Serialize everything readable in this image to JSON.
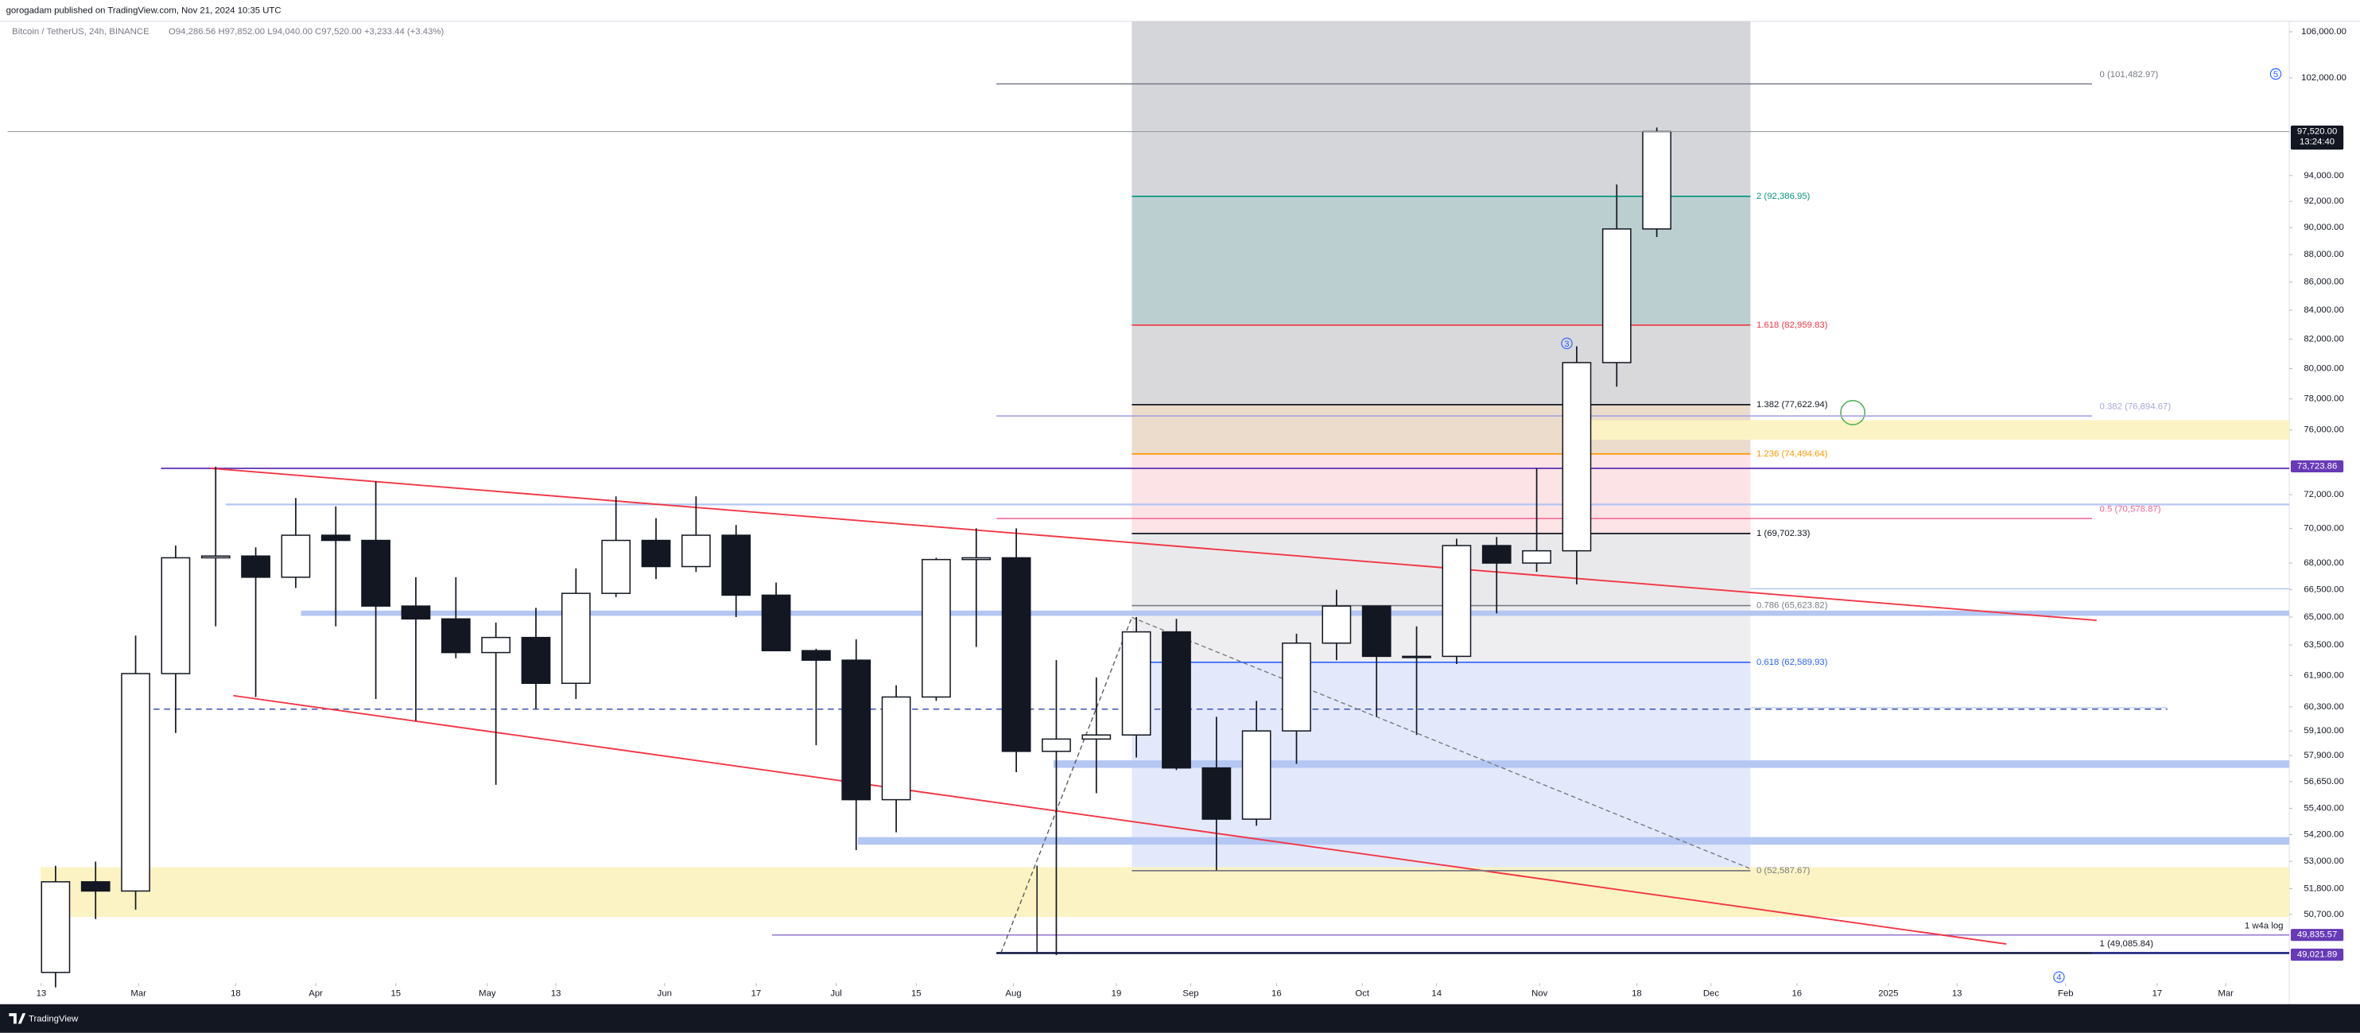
{
  "header": {
    "published": "gorogadam published on TradingView.com, Nov 21, 2024 10:35 UTC",
    "brand": "TradingView"
  },
  "chart_data": {
    "type": "candlestick",
    "title": "Bitcoin / TetherUS, 24h, BINANCE",
    "ohlc_text": "O94,286.56 H97,852.00 L94,040.00 C97,520.00 +3,233.44 (+3.43%)",
    "log_scale": true,
    "grid": false,
    "up_color": "#ffffff",
    "down_color": "#131722",
    "x": [
      43,
      50,
      57,
      64,
      71,
      78,
      85,
      92,
      99,
      106,
      113,
      120,
      127,
      134,
      141,
      148,
      155,
      162,
      169,
      176,
      183,
      190,
      197,
      204,
      211,
      218,
      225,
      232,
      239,
      246,
      253,
      260,
      267,
      274,
      281,
      288,
      295,
      302,
      309,
      316,
      323
    ],
    "open": [
      48300,
      52100,
      51700,
      62000,
      68300,
      68400,
      67200,
      69600,
      69300,
      65600,
      64900,
      63100,
      63900,
      61500,
      66300,
      69300,
      67800,
      69600,
      66200,
      63200,
      62700,
      55800,
      60800,
      68200,
      68300,
      58100,
      58700,
      58900,
      64200,
      57300,
      54900,
      59100,
      63600,
      65600,
      62900,
      62900,
      69000,
      68000,
      68700,
      80400,
      89900
    ],
    "high": [
      52800,
      52985,
      64000,
      69000,
      73700,
      68900,
      71800,
      71300,
      72800,
      67200,
      67200,
      64700,
      65500,
      67700,
      71900,
      70600,
      71900,
      70200,
      66900,
      63300,
      63800,
      61400,
      68300,
      70000,
      70000,
      62700,
      61800,
      65000,
      64900,
      59800,
      60600,
      64100,
      66500,
      65600,
      64500,
      69400,
      69500,
      73600,
      81500,
      93300,
      97852
    ],
    "low": [
      47700,
      50500,
      50900,
      59000,
      64500,
      60800,
      66600,
      64500,
      60700,
      59600,
      62800,
      56500,
      60200,
      60700,
      66100,
      67100,
      67500,
      65000,
      63300,
      58400,
      53500,
      54300,
      60600,
      63400,
      57100,
      49000,
      56100,
      57800,
      57200,
      52600,
      54600,
      57500,
      62700,
      59800,
      58900,
      62500,
      65200,
      67500,
      66800,
      78800,
      89300
    ],
    "close": [
      52100,
      51700,
      62000,
      68300,
      68400,
      67200,
      69600,
      69300,
      65600,
      64900,
      63100,
      63900,
      61500,
      66300,
      69300,
      67800,
      69600,
      66200,
      63200,
      62700,
      55800,
      60800,
      68200,
      68300,
      58100,
      58700,
      58900,
      64200,
      57300,
      54900,
      59100,
      63600,
      65600,
      62900,
      62900,
      69000,
      68000,
      68700,
      80400,
      89900,
      97520
    ],
    "xlim": [
      38.1,
      437.1
    ],
    "xticks": [
      {
        "value": 44,
        "label": "13"
      },
      {
        "value": 61,
        "label": "Mar"
      },
      {
        "value": 78,
        "label": "18"
      },
      {
        "value": 92,
        "label": "Apr"
      },
      {
        "value": 106,
        "label": "15"
      },
      {
        "value": 122,
        "label": "May"
      },
      {
        "value": 134,
        "label": "13"
      },
      {
        "value": 153,
        "label": "Jun"
      },
      {
        "value": 169,
        "label": "17"
      },
      {
        "value": 183,
        "label": "Jul"
      },
      {
        "value": 197,
        "label": "15"
      },
      {
        "value": 214,
        "label": "Aug"
      },
      {
        "value": 232,
        "label": "19"
      },
      {
        "value": 245,
        "label": "Sep"
      },
      {
        "value": 260,
        "label": "16"
      },
      {
        "value": 275,
        "label": "Oct"
      },
      {
        "value": 288,
        "label": "14"
      },
      {
        "value": 306,
        "label": "Nov"
      },
      {
        "value": 323,
        "label": "18"
      },
      {
        "value": 336,
        "label": "Dec"
      },
      {
        "value": 351,
        "label": "16"
      },
      {
        "value": 367,
        "label": "2025"
      },
      {
        "value": 379,
        "label": "13"
      },
      {
        "value": 398,
        "label": "Feb"
      },
      {
        "value": 414,
        "label": "17"
      },
      {
        "value": 426,
        "label": "Mar"
      }
    ],
    "ylim": [
      47870,
      106937
    ],
    "yticks": [
      {
        "value": 106000,
        "label": "106,000.00"
      },
      {
        "value": 102000,
        "label": "102,000.00"
      },
      {
        "value": 94000,
        "label": "94,000.00"
      },
      {
        "value": 92000,
        "label": "92,000.00"
      },
      {
        "value": 90000,
        "label": "90,000.00"
      },
      {
        "value": 88000,
        "label": "88,000.00"
      },
      {
        "value": 86000,
        "label": "86,000.00"
      },
      {
        "value": 84000,
        "label": "84,000.00"
      },
      {
        "value": 82000,
        "label": "82,000.00"
      },
      {
        "value": 80000,
        "label": "80,000.00"
      },
      {
        "value": 78000,
        "label": "78,000.00"
      },
      {
        "value": 76000,
        "label": "76,000.00"
      },
      {
        "value": 72000,
        "label": "72,000.00"
      },
      {
        "value": 70000,
        "label": "70,000.00"
      },
      {
        "value": 68000,
        "label": "68,000.00"
      },
      {
        "value": 66500,
        "label": "66,500.00"
      },
      {
        "value": 65000,
        "label": "65,000.00"
      },
      {
        "value": 63500,
        "label": "63,500.00"
      },
      {
        "value": 61900,
        "label": "61,900.00"
      },
      {
        "value": 60300,
        "label": "60,300.00"
      },
      {
        "value": 59100,
        "label": "59,100.00"
      },
      {
        "value": 57900,
        "label": "57,900.00"
      },
      {
        "value": 56650,
        "label": "56,650.00"
      },
      {
        "value": 55400,
        "label": "55,400.00"
      },
      {
        "value": 54200,
        "label": "54,200.00"
      },
      {
        "value": 53000,
        "label": "53,000.00"
      },
      {
        "value": 51800,
        "label": "51,800.00"
      },
      {
        "value": 50700,
        "label": "50,700.00"
      }
    ],
    "price_labels": [
      {
        "value": 97520,
        "label": "97,520.00",
        "color": "#131722",
        "line": true
      },
      {
        "value": 73723.86,
        "label": "73,723.86",
        "color": "#673ab7",
        "line": false
      },
      {
        "value": 49835.57,
        "label": "49,835.57",
        "color": "#673ab7",
        "line": false
      },
      {
        "value": 49021.89,
        "label": "49,021.89",
        "color": "#673ab7",
        "line": false
      }
    ],
    "countdown": "13:24:40",
    "fib_right": {
      "top_fill": "#d5d6da",
      "levels": [
        {
          "label": "2 (92,386.95)",
          "value": 92386.95,
          "color": "#089981",
          "fill": "#bccfd0"
        },
        {
          "label": "1.618 (82,959.83)",
          "value": 82959.83,
          "color": "#f23645",
          "fill": "#d9d9db"
        },
        {
          "label": "1.382 (77,622.94)",
          "value": 77622.94,
          "color": "#131722",
          "fill": "#ecdccb"
        },
        {
          "label": "1.236 (74,494.64)",
          "value": 74494.64,
          "color": "#ff9800",
          "fill": "#fbe3e6"
        },
        {
          "label": "1 (69,702.33)",
          "value": 69702.33,
          "color": "#131722",
          "fill": "#e9e9eb"
        },
        {
          "label": "0.786 (65,623.82)",
          "value": 65623.82,
          "color": "#787b86",
          "fill": "#eeeef0"
        },
        {
          "label": "0.618 (62,589.93)",
          "value": 62589.93,
          "color": "#2962ff",
          "fill": "#e3e9fb"
        },
        {
          "label": "0 (52,587.67)",
          "value": 52587.67,
          "color": "#787b86",
          "fill": "none"
        }
      ]
    },
    "fib_left": {
      "levels": [
        {
          "label": "0 (101,482.97)",
          "value": 101482.97,
          "color": "#787b86"
        },
        {
          "label": "0.382 (76,894.67)",
          "value": 76894.67,
          "color": "#a5a5e0"
        },
        {
          "label": "0.5 (70,578.87)",
          "value": 70578.87,
          "color": "#f06292"
        },
        {
          "label": "1 (49,085.84)",
          "value": 49085.84,
          "color": "#131722"
        }
      ]
    },
    "annotations": [
      "5",
      "3",
      "4",
      "1 w4a log"
    ]
  }
}
